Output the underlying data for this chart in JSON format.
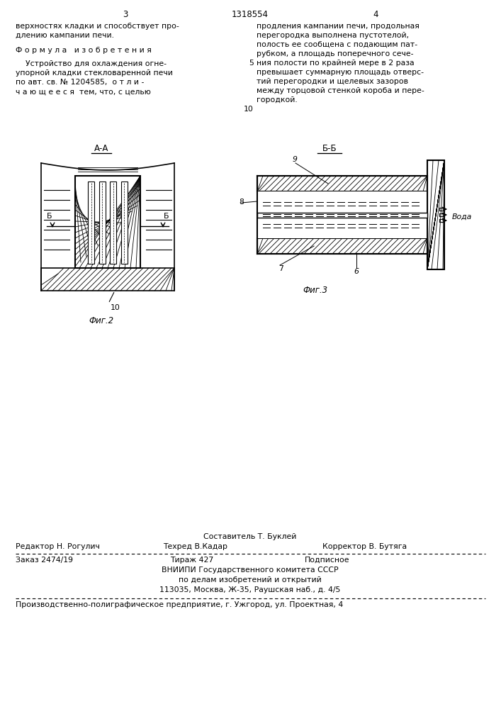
{
  "bg_color": "#ffffff",
  "page_num_left": "3",
  "page_num_center": "1318554",
  "page_num_right": "4",
  "text_col1_line1": "верхностях кладки и способствует про-",
  "text_col1_line2": "длению кампании печи.",
  "text_col1_formula_title": "Ф о р м у л а   и з о б р е т е н и я",
  "text_col1_body1": "    Устройство для охлаждения огне-",
  "text_col1_body2": "упорной кладки стекловаренной печи",
  "text_col1_body3": "по авт. св. № 1204585,  о т л и -",
  "text_col1_body4": "ч а ю щ е е с я  тем, что, с целью",
  "text_col2_line1": "продления кампании печи, продольная",
  "text_col2_line2": "перегородка выполнена пустотелой,",
  "text_col2_line3": "полость ее сообщена с подающим пат-",
  "text_col2_line4": "рубком, а площадь поперечного сече-",
  "text_col2_line5": "ния полости по крайней мере в 2 раза",
  "text_col2_line6": "превышает суммарную площадь отверс-",
  "text_col2_line7": "тий перегородки и щелевых зазоров",
  "text_col2_line8": "между торцовой стенкой короба и пере-",
  "text_col2_line9": "городкой.",
  "line_num_5": "5",
  "line_num_10": "10",
  "fig2_title": "А-А",
  "fig3_title": "Б-Б",
  "fig2_caption": "Фиг.2",
  "fig3_caption": "Фиг.3",
  "label_b_left": "Б",
  "label_b_right": "Б",
  "label_6": "6",
  "label_7": "7",
  "label_8": "8",
  "label_9": "9",
  "label_10": "10",
  "label_voda": "Вода",
  "footer_sestavitel": "Составитель Т. Буклей",
  "footer_redaktor": "Редактор Н. Рогулич",
  "footer_tehred": "Техред В.Кадар",
  "footer_korrektor": "Корректор В. Бутяга",
  "footer_zakaz": "Заказ 2474/19",
  "footer_tirazh": "Тираж 427",
  "footer_podpisnoe": "Подписное",
  "footer_vniip1": "ВНИИПИ Государственного комитета СССР",
  "footer_vniip2": "по делам изобретений и открытий",
  "footer_vniip3": "113035, Москва, Ж-35, Раушская наб., д. 4/5",
  "footer_proizv": "Производственно-полиграфическое предприятие, г. Ужгород, ул. Проектная, 4",
  "line_color": "#000000"
}
